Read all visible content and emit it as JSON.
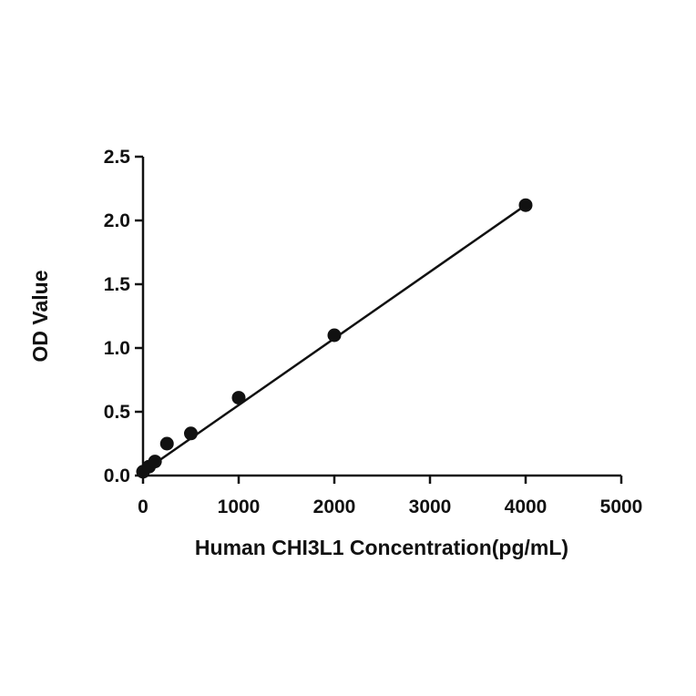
{
  "chart_data": {
    "type": "scatter",
    "title": "",
    "xlabel": "Human CHI3L1 Concentration(pg/mL)",
    "ylabel": "OD Value",
    "xlim": [
      0,
      5000
    ],
    "ylim": [
      0,
      2.5
    ],
    "x_ticks": [
      "0",
      "1000",
      "2000",
      "3000",
      "4000",
      "5000"
    ],
    "y_ticks": [
      "0.0",
      "0.5",
      "1.0",
      "1.5",
      "2.0",
      "2.5"
    ],
    "grid": false,
    "legend": "none",
    "series": [
      {
        "points": [
          {
            "x": 0,
            "y": 0.03
          },
          {
            "x": 62.5,
            "y": 0.07
          },
          {
            "x": 125,
            "y": 0.11
          },
          {
            "x": 250,
            "y": 0.25
          },
          {
            "x": 500,
            "y": 0.33
          },
          {
            "x": 1000,
            "y": 0.61
          },
          {
            "x": 2000,
            "y": 1.1
          },
          {
            "x": 4000,
            "y": 2.12
          }
        ]
      }
    ],
    "fit_line": {
      "type": "linear",
      "x_range": [
        0,
        4000
      ],
      "y_range": [
        0.03,
        2.12
      ]
    },
    "colors": {
      "marker": "#111111",
      "line": "#111111"
    }
  }
}
